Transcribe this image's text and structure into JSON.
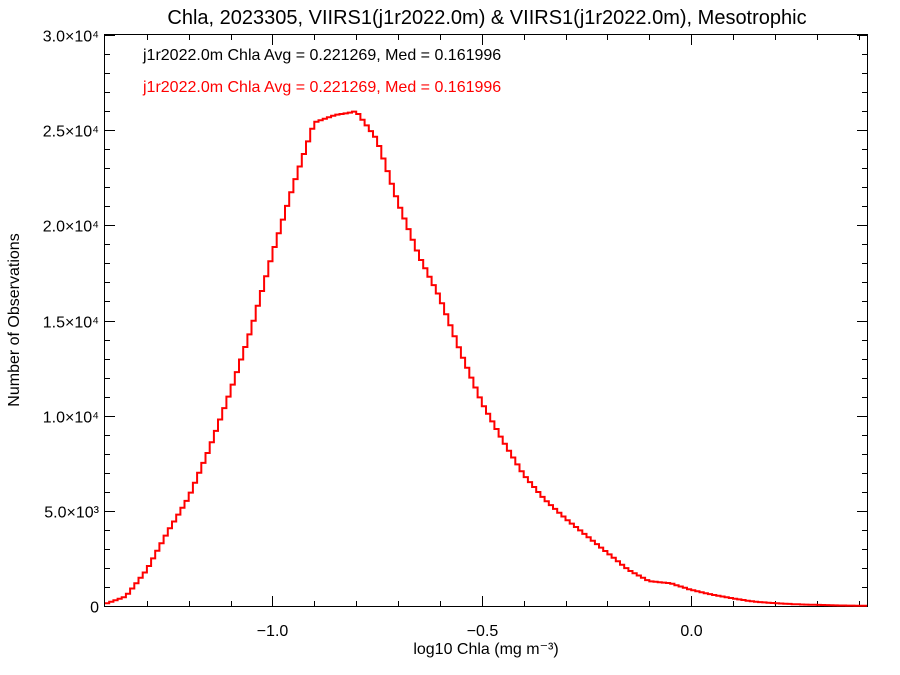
{
  "chart_data": {
    "type": "line",
    "title": "Chla, 2023305, VIIRS1(j1r2022.0m) & VIIRS1(j1r2022.0m), Mesotrophic",
    "xlabel": "log10 Chla (mg m⁻³)",
    "ylabel": "Number of Observations",
    "xlim": [
      -1.4,
      0.42
    ],
    "ylim": [
      0,
      30000
    ],
    "x_ticks": [
      {
        "value": -1.0,
        "label": "−1.0"
      },
      {
        "value": -0.5,
        "label": "−0.5"
      },
      {
        "value": 0.0,
        "label": "0.0"
      }
    ],
    "y_ticks": [
      {
        "value": 0,
        "label": "0"
      },
      {
        "value": 5000,
        "label": "5.0×10³"
      },
      {
        "value": 10000,
        "label": "1.0×10⁴"
      },
      {
        "value": 15000,
        "label": "1.5×10⁴"
      },
      {
        "value": 20000,
        "label": "2.0×10⁴"
      },
      {
        "value": 25000,
        "label": "2.5×10⁴"
      },
      {
        "value": 30000,
        "label": "3.0×10⁴"
      }
    ],
    "annotations": [
      {
        "text": "j1r2022.0m Chla Avg = 0.221269, Med = 0.161996",
        "color": "#000000"
      },
      {
        "text": "j1r2022.0m Chla Avg = 0.221269, Med = 0.161996",
        "color": "#ff0000"
      }
    ],
    "series": [
      {
        "color": "#ff0000",
        "x": [
          -1.4,
          -1.35,
          -1.3,
          -1.25,
          -1.2,
          -1.15,
          -1.1,
          -1.05,
          -1.0,
          -0.95,
          -0.9,
          -0.85,
          -0.82,
          -0.8,
          -0.75,
          -0.7,
          -0.65,
          -0.6,
          -0.55,
          -0.5,
          -0.45,
          -0.4,
          -0.35,
          -0.3,
          -0.25,
          -0.2,
          -0.15,
          -0.1,
          -0.05,
          0.0,
          0.05,
          0.1,
          0.15,
          0.2,
          0.25,
          0.3,
          0.35,
          0.4,
          0.42
        ],
        "y": [
          100,
          500,
          1900,
          3900,
          5700,
          8300,
          11300,
          14600,
          18500,
          22100,
          25400,
          25800,
          25900,
          26000,
          24500,
          21200,
          18400,
          16200,
          13300,
          10700,
          8700,
          6900,
          5600,
          4600,
          3700,
          2800,
          1900,
          1300,
          1200,
          850,
          600,
          400,
          230,
          150,
          90,
          60,
          30,
          15,
          10
        ]
      }
    ]
  }
}
